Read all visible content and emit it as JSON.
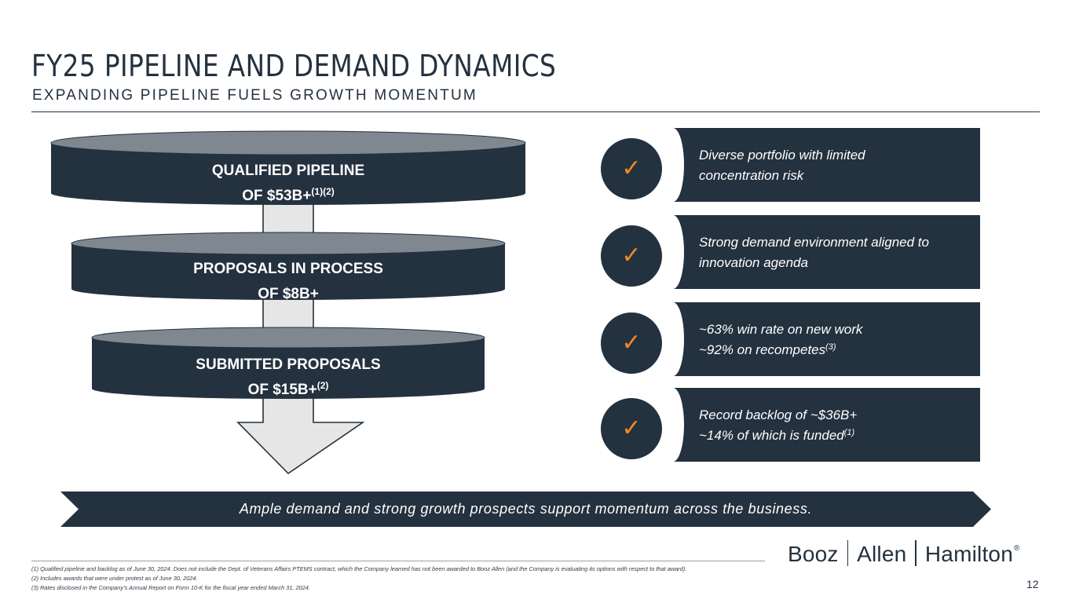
{
  "header": {
    "title": "FY25 PIPELINE AND DEMAND DYNAMICS",
    "subtitle": "EXPANDING PIPELINE FUELS GROWTH MOMENTUM"
  },
  "funnel": {
    "tiers": [
      {
        "line1": "QUALIFIED PIPELINE",
        "line2": "OF $53B+",
        "sup": "(1)(2)"
      },
      {
        "line1": "PROPOSALS IN PROCESS",
        "line2": "OF $8B+",
        "sup": ""
      },
      {
        "line1": "SUBMITTED PROPOSALS",
        "line2": "OF $15B+",
        "sup": "(2)"
      }
    ]
  },
  "highlights": [
    {
      "icon": "check-icon",
      "line1": "Diverse portfolio with limited",
      "line2": "concentration risk",
      "sup": ""
    },
    {
      "icon": "check-icon",
      "line1": "Strong demand environment aligned to",
      "line2": "innovation agenda",
      "sup": ""
    },
    {
      "icon": "check-icon",
      "line1": "~63% win rate on new work",
      "line2": "~92% on recompetes",
      "sup": "(3)"
    },
    {
      "icon": "check-icon",
      "line1": "Record backlog of ~$36B+",
      "line2": "~14% of which is funded",
      "sup": "(1)"
    }
  ],
  "banner": {
    "text": "Ample demand and strong growth prospects support momentum across the business."
  },
  "footnotes": [
    "(1) Qualified pipeline and backlog as of June 30, 2024. Does not include the Dept. of Veterans Affairs PTEMS contract, which the Company learned has not been awarded to Booz Allen (and the Company is evaluating its options with respect to that award).",
    "(2) Includes awards that were under protest as of June 30, 2024.",
    "(3) Rates disclosed in the Company’s Annual Report on Form 10-K for the fiscal year ended March 31, 2024."
  ],
  "logo": {
    "part1": "Booz",
    "part2": "Allen",
    "part3": "Hamilton",
    "reg": "®"
  },
  "page_number": "12",
  "colors": {
    "navy": "#24313f",
    "disk_top": "#7f8891",
    "arrow_fill": "#e6e6e6",
    "check": "#f08a24"
  }
}
